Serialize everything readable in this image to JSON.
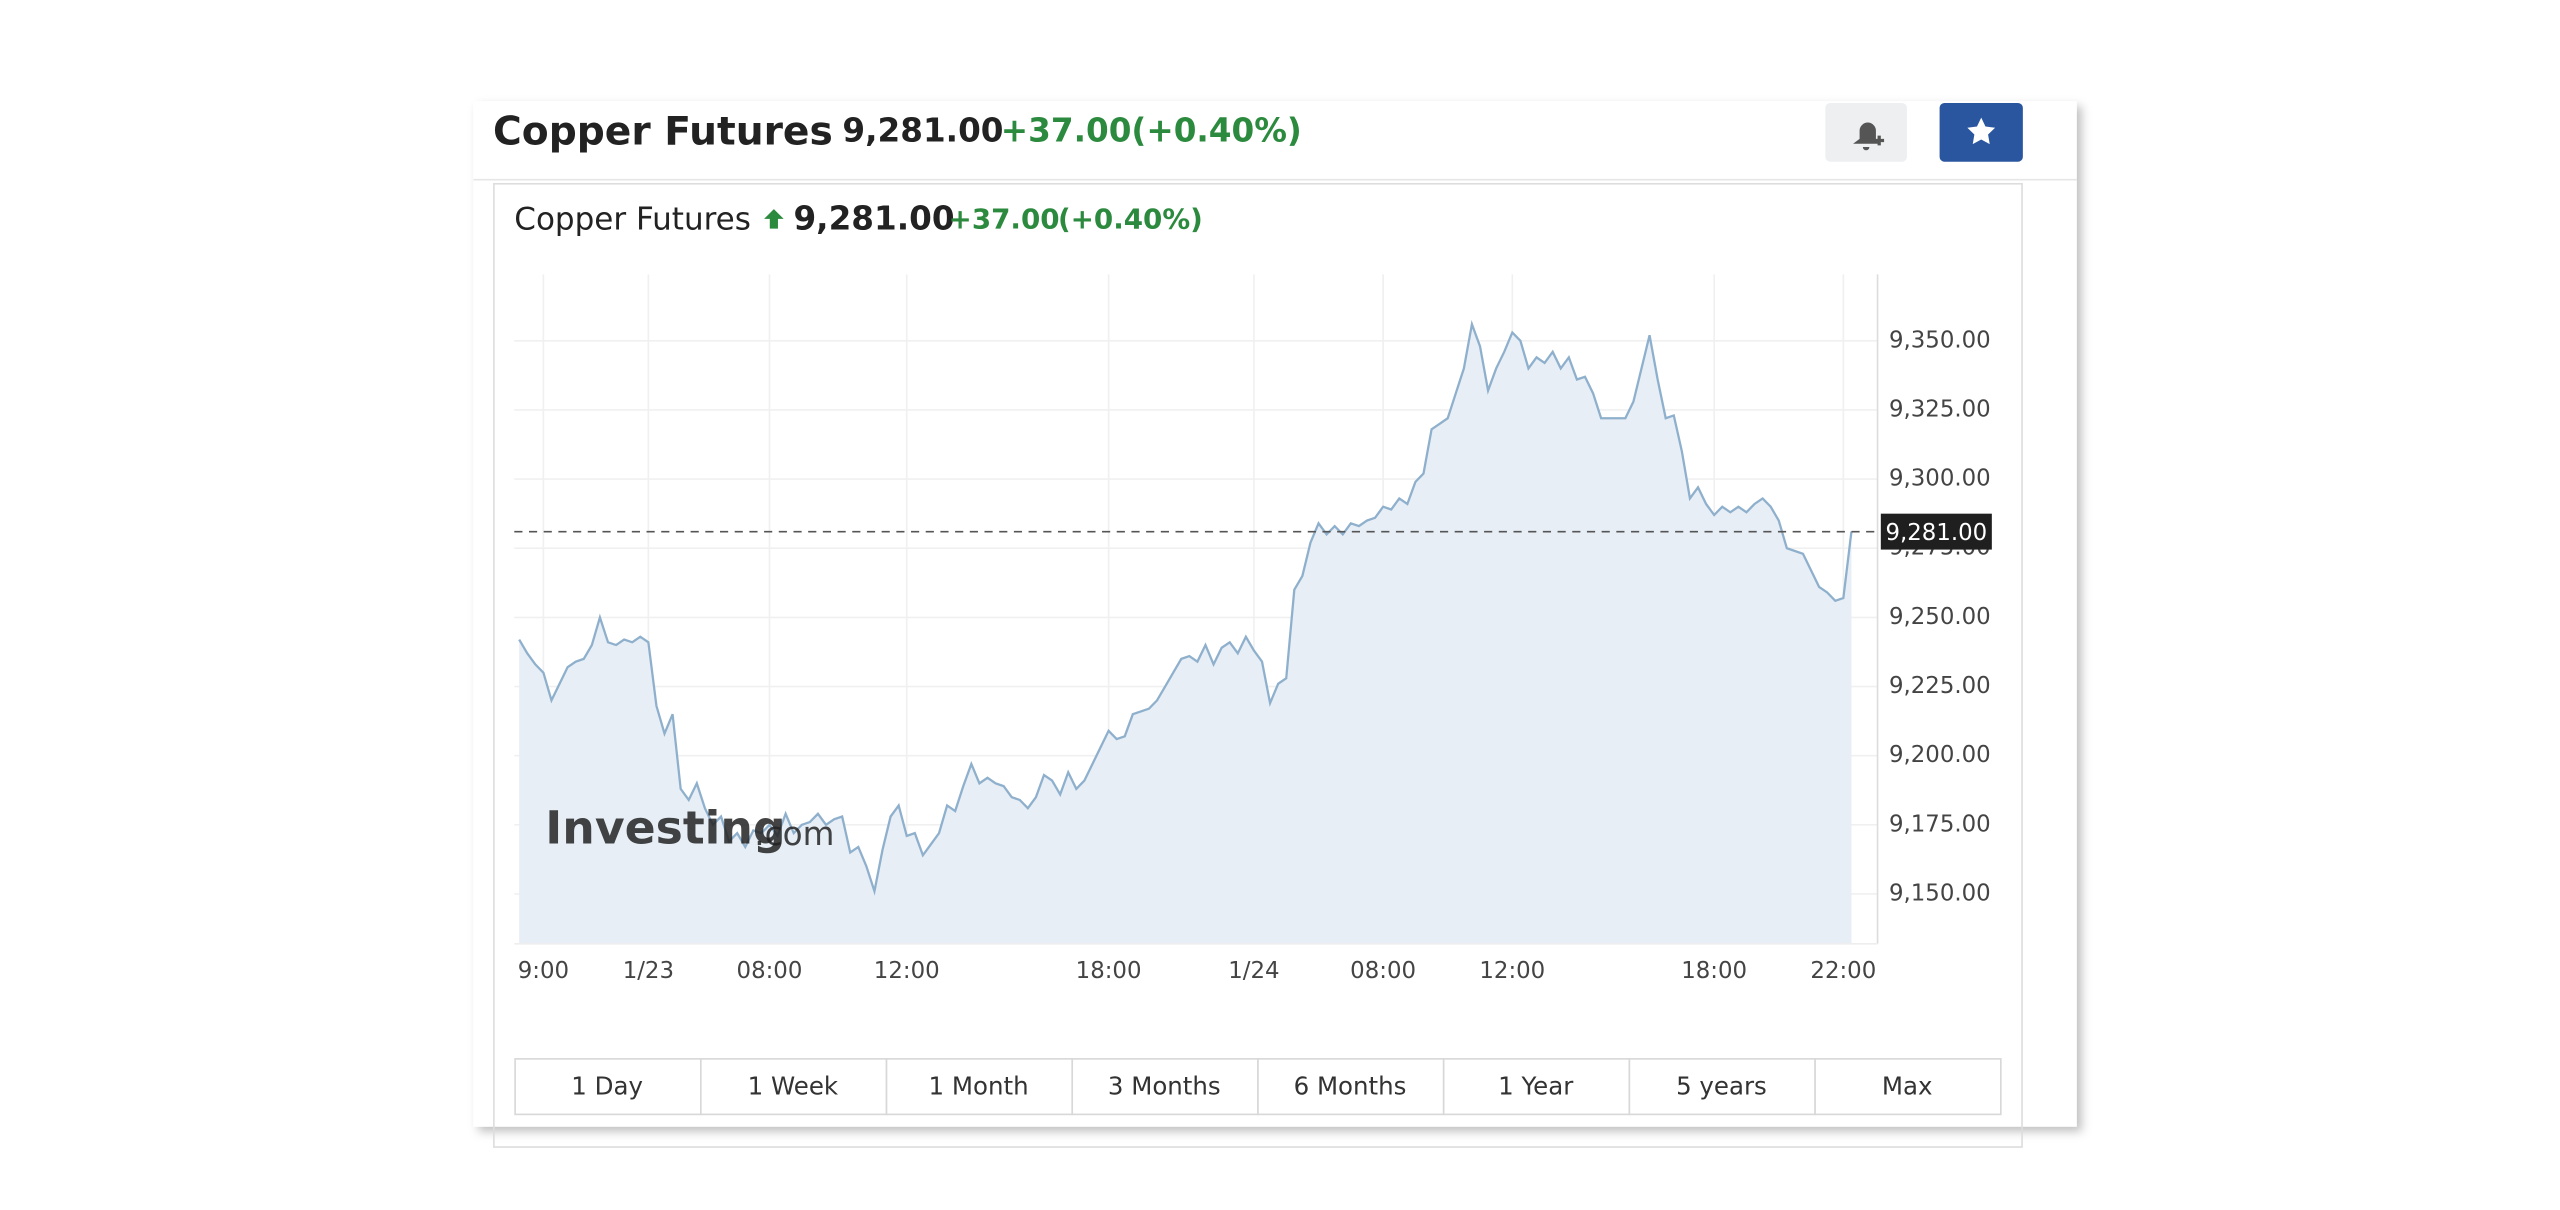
{
  "header": {
    "title": "Copper Futures",
    "price": "9,281.00",
    "change": "+37.00",
    "change_percent": "(+0.40%)"
  },
  "watermark": {
    "brand": "Investing",
    "suffix": ".com"
  },
  "ranges": [
    "1 Day",
    "1 Week",
    "1 Month",
    "3 Months",
    "6 Months",
    "1 Year",
    "5 years",
    "Max"
  ],
  "chart_data": {
    "type": "area",
    "color": "#8fb0cc",
    "fill_color": "#e7eef6",
    "grid": true,
    "ylim": [
      9132,
      9374
    ],
    "yticks": [
      {
        "value": 9150,
        "label": "9,150.00"
      },
      {
        "value": 9175,
        "label": "9,175.00"
      },
      {
        "value": 9200,
        "label": "9,200.00"
      },
      {
        "value": 9225,
        "label": "9,225.00"
      },
      {
        "value": 9250,
        "label": "9,250.00"
      },
      {
        "value": 9275,
        "label": "9,275.00"
      },
      {
        "value": 9300,
        "label": "9,300.00"
      },
      {
        "value": 9325,
        "label": "9,325.00"
      },
      {
        "value": 9350,
        "label": "9,350.00"
      }
    ],
    "current": {
      "value": 9281,
      "label": "9,281.00"
    },
    "categories": [
      null,
      null,
      null,
      "9:00",
      null,
      null,
      null,
      null,
      null,
      null,
      null,
      null,
      null,
      null,
      null,
      null,
      "1/23",
      null,
      null,
      null,
      null,
      null,
      null,
      null,
      null,
      null,
      null,
      null,
      null,
      null,
      null,
      "08:00",
      null,
      null,
      null,
      null,
      null,
      null,
      null,
      null,
      null,
      null,
      null,
      null,
      null,
      null,
      null,
      null,
      "12:00",
      null,
      null,
      null,
      null,
      null,
      null,
      null,
      null,
      null,
      null,
      null,
      null,
      null,
      null,
      null,
      null,
      null,
      null,
      null,
      null,
      null,
      null,
      null,
      null,
      "18:00",
      null,
      null,
      null,
      null,
      null,
      null,
      null,
      null,
      null,
      null,
      null,
      null,
      null,
      null,
      null,
      null,
      null,
      "1/24",
      null,
      null,
      null,
      null,
      null,
      null,
      null,
      null,
      null,
      null,
      null,
      null,
      null,
      null,
      null,
      "08:00",
      null,
      null,
      null,
      null,
      null,
      null,
      null,
      null,
      null,
      null,
      null,
      null,
      null,
      null,
      null,
      "12:00",
      null,
      null,
      null,
      null,
      null,
      null,
      null,
      null,
      null,
      null,
      null,
      null,
      null,
      null,
      null,
      null,
      null,
      null,
      null,
      null,
      null,
      null,
      null,
      null,
      "18:00",
      null,
      null,
      null,
      null,
      null,
      null,
      null,
      null,
      null,
      null,
      null,
      null,
      null,
      null,
      null,
      "22:00",
      null
    ],
    "values": [
      9242,
      9237,
      9233,
      9230,
      9220,
      9226,
      9232,
      9234,
      9235,
      9240,
      9250,
      9241,
      9240,
      9242,
      9241,
      9243,
      9241,
      9218,
      9208,
      9215,
      9188,
      9184,
      9190,
      9181,
      9175,
      9178,
      9169,
      9172,
      9167,
      9173,
      9172,
      9175,
      9171,
      9179,
      9172,
      9175,
      9176,
      9179,
      9175,
      9177,
      9178,
      9165,
      9167,
      9160,
      9151,
      9166,
      9178,
      9182,
      9171,
      9172,
      9164,
      9168,
      9172,
      9182,
      9180,
      9189,
      9197,
      9190,
      9192,
      9190,
      9189,
      9185,
      9184,
      9181,
      9185,
      9193,
      9191,
      9186,
      9194,
      9188,
      9191,
      9197,
      9203,
      9209,
      9206,
      9207,
      9215,
      9216,
      9217,
      9220,
      9225,
      9230,
      9235,
      9236,
      9234,
      9240,
      9233,
      9239,
      9241,
      9237,
      9243,
      9238,
      9234,
      9219,
      9226,
      9228,
      9260,
      9265,
      9277,
      9284,
      9280,
      9283,
      9280,
      9284,
      9283,
      9285,
      9286,
      9290,
      9289,
      9293,
      9291,
      9299,
      9302,
      9318,
      9320,
      9322,
      9331,
      9340,
      9356,
      9348,
      9332,
      9340,
      9346,
      9353,
      9350,
      9340,
      9344,
      9342,
      9346,
      9340,
      9344,
      9336,
      9337,
      9331,
      9322,
      9322,
      9322,
      9322,
      9328,
      9340,
      9352,
      9336,
      9322,
      9323,
      9310,
      9293,
      9297,
      9291,
      9287,
      9290,
      9288,
      9290,
      9288,
      9291,
      9293,
      9290,
      9285,
      9275,
      9274,
      9273,
      9267,
      9261,
      9259,
      9256,
      9257,
      9281
    ]
  }
}
